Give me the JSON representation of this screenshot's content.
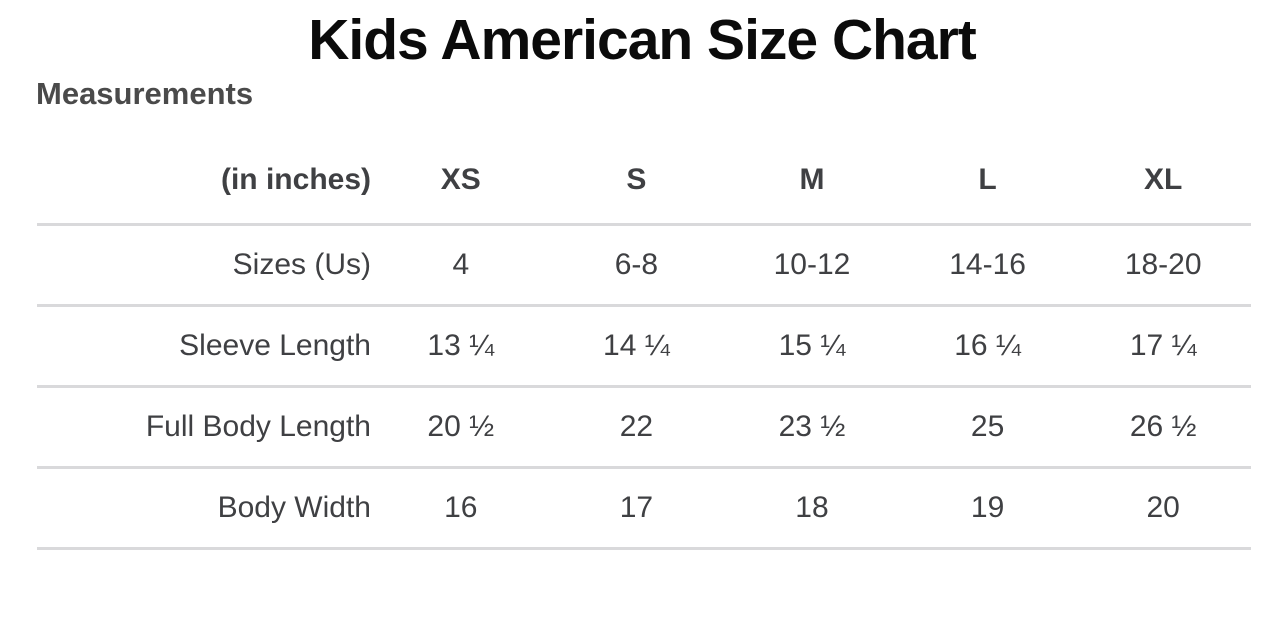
{
  "page": {
    "title": "Kids American Size Chart",
    "subtitle": "Measurements"
  },
  "chart_data": {
    "type": "table",
    "title": "Kids American Size Chart",
    "subtitle": "Measurements",
    "unit_label": "(in inches)",
    "columns": [
      "XS",
      "S",
      "M",
      "L",
      "XL"
    ],
    "rows": [
      {
        "label": "Sizes (Us)",
        "values": [
          "4",
          "6-8",
          "10-12",
          "14-16",
          "18-20"
        ]
      },
      {
        "label": "Sleeve Length",
        "values": [
          "13 ¼",
          "14 ¼",
          "15 ¼",
          "16 ¼",
          "17 ¼"
        ]
      },
      {
        "label": "Full Body Length",
        "values": [
          "20 ½",
          "22",
          "23 ½",
          "25",
          "26 ½"
        ]
      },
      {
        "label": "Body Width",
        "values": [
          "16",
          "17",
          "18",
          "19",
          "20"
        ]
      }
    ],
    "layout": {
      "text_color": "#3f4043",
      "title_color": "#0b0b0b",
      "subtitle_color": "#4a4a4a",
      "divider_color": "#d9d9db",
      "grid": "horizontal-dividers-only"
    }
  }
}
